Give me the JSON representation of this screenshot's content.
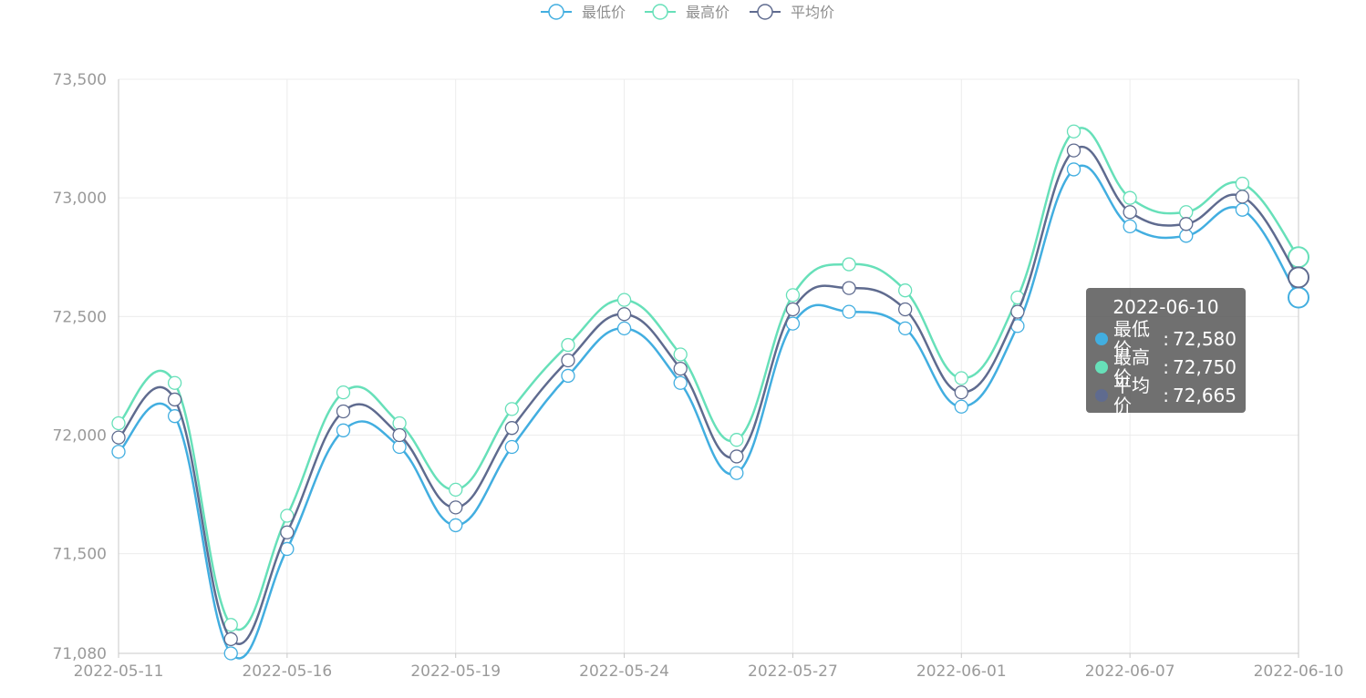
{
  "legend": [
    {
      "name": "最低价",
      "color": "#42aee0"
    },
    {
      "name": "最高价",
      "color": "#67e0b9"
    },
    {
      "name": "平均价",
      "color": "#5f6b8f"
    }
  ],
  "chart_data": {
    "type": "line",
    "smooth": true,
    "x": [
      "2022-05-11",
      "2022-05-12",
      "2022-05-13",
      "2022-05-16",
      "2022-05-17",
      "2022-05-18",
      "2022-05-19",
      "2022-05-20",
      "2022-05-23",
      "2022-05-24",
      "2022-05-25",
      "2022-05-26",
      "2022-05-27",
      "2022-05-30",
      "2022-05-31",
      "2022-06-01",
      "2022-06-02",
      "2022-06-06",
      "2022-06-07",
      "2022-06-08",
      "2022-06-09",
      "2022-06-10"
    ],
    "x_tick_labels": [
      "2022-05-11",
      "2022-05-16",
      "2022-05-19",
      "2022-05-24",
      "2022-05-27",
      "2022-06-01",
      "2022-06-07",
      "2022-06-10"
    ],
    "x_tick_indices": [
      0,
      3,
      6,
      9,
      12,
      15,
      18,
      21
    ],
    "ylim": [
      71080,
      73500
    ],
    "y_ticks": [
      73500,
      73000,
      72500,
      72000,
      71500,
      71080
    ],
    "y_tick_labels": [
      "73,500",
      "73,000",
      "72,500",
      "72,000",
      "71,500",
      "71,080"
    ],
    "grid": true,
    "legend_position": "top-center",
    "series": [
      {
        "name": "最低价",
        "color": "#42aee0",
        "values": [
          71930,
          72080,
          71080,
          71520,
          72020,
          71950,
          71620,
          71950,
          72250,
          72450,
          72220,
          71840,
          72470,
          72520,
          72450,
          72120,
          72460,
          73120,
          72880,
          72840,
          72950,
          72580
        ]
      },
      {
        "name": "最高价",
        "color": "#67e0b9",
        "values": [
          72050,
          72220,
          71200,
          71660,
          72180,
          72050,
          71770,
          72110,
          72380,
          72570,
          72340,
          71980,
          72590,
          72720,
          72610,
          72240,
          72580,
          73280,
          73000,
          72940,
          73060,
          72750
        ]
      },
      {
        "name": "平均价",
        "color": "#5f6b8f",
        "values": [
          71990,
          72150,
          71140,
          71590,
          72100,
          72000,
          71695,
          72030,
          72315,
          72510,
          72280,
          71910,
          72530,
          72620,
          72530,
          72180,
          72520,
          73200,
          72940,
          72890,
          73005,
          72665
        ]
      }
    ]
  },
  "tooltip": {
    "title": "2022-06-10",
    "rows": [
      {
        "name": "最低价",
        "value": "72,580",
        "color": "#42aee0"
      },
      {
        "name": "最高价",
        "value": "72,750",
        "color": "#67e0b9"
      },
      {
        "name": "平均价",
        "value": "72,665",
        "color": "#5f6b8f"
      }
    ]
  }
}
